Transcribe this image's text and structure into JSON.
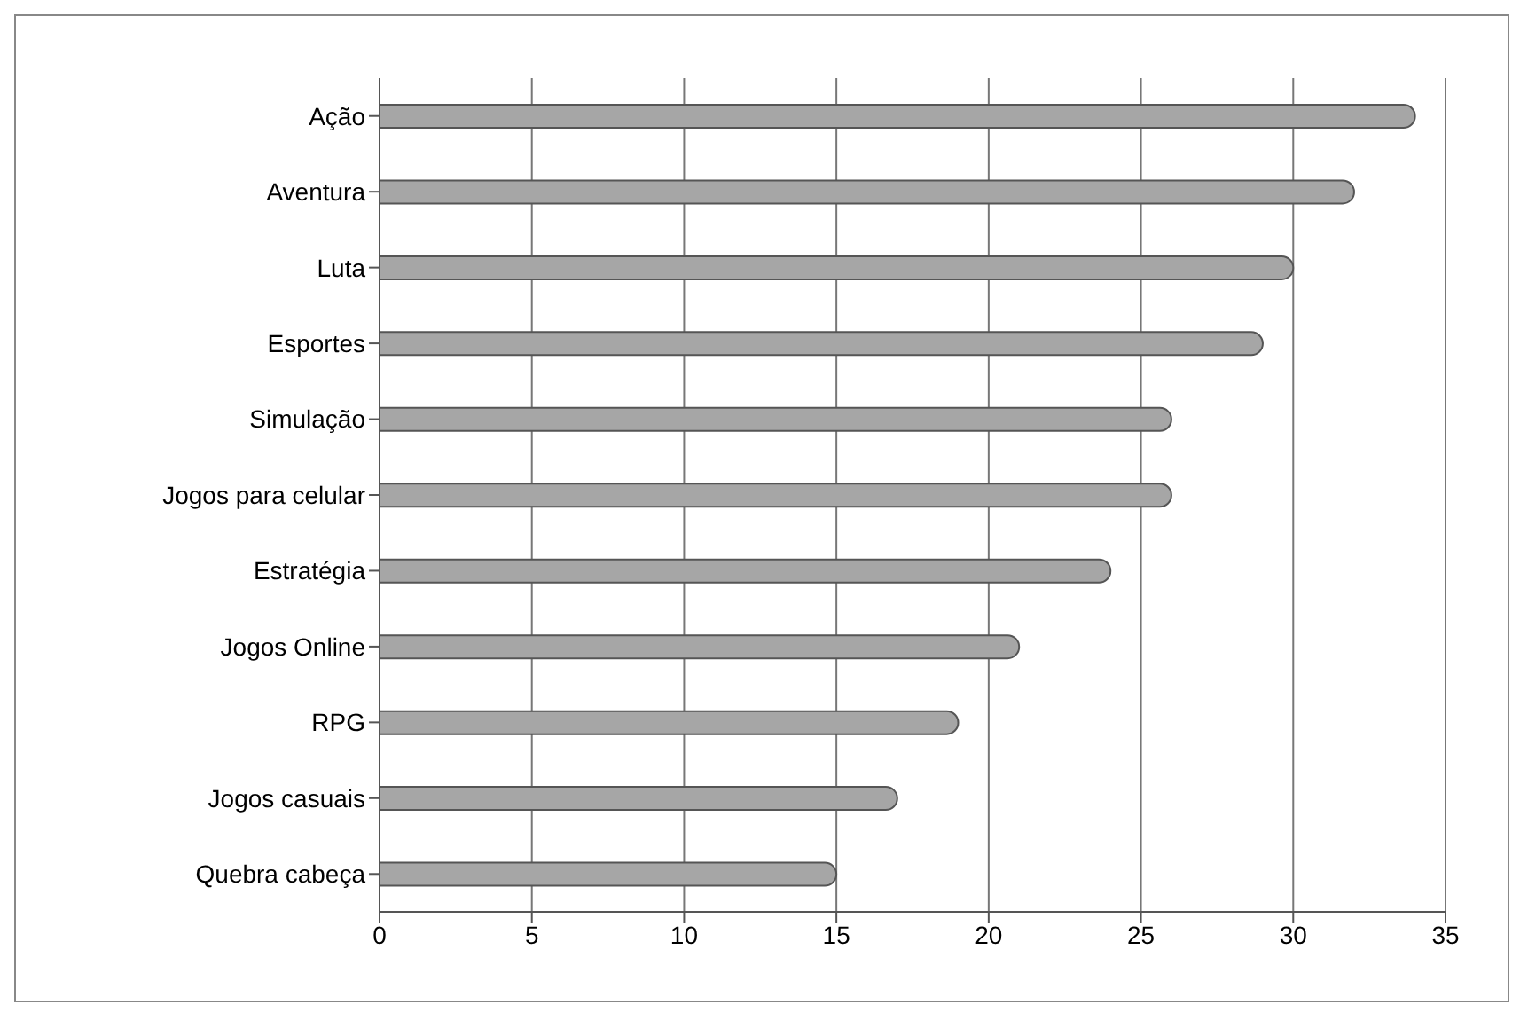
{
  "chart_data": {
    "type": "bar",
    "orientation": "horizontal",
    "categories": [
      "Ação",
      "Aventura",
      "Luta",
      "Esportes",
      "Simulação",
      "Jogos para celular",
      "Estratégia",
      "Jogos Online",
      "RPG",
      "Jogos casuais",
      "Quebra cabeça"
    ],
    "values": [
      34,
      32,
      30,
      29,
      26,
      26,
      24,
      21,
      19,
      17,
      15
    ],
    "color": "#a6a6a6",
    "xlim": [
      0,
      35
    ],
    "xticks": [
      0,
      5,
      10,
      15,
      20,
      25,
      30,
      35
    ],
    "grid": "x"
  }
}
